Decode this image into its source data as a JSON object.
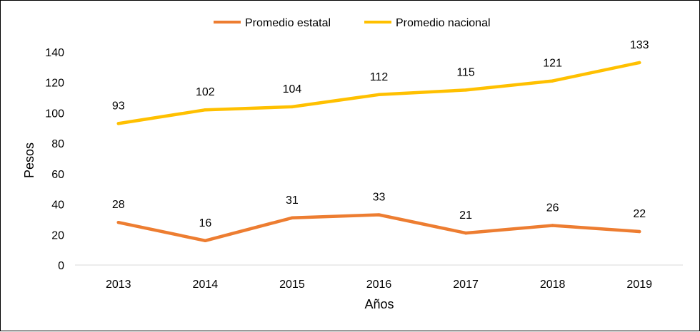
{
  "chart_data": {
    "type": "line",
    "title": "",
    "xlabel": "Años",
    "ylabel": "Pesos",
    "categories": [
      "2013",
      "2014",
      "2015",
      "2016",
      "2017",
      "2018",
      "2019"
    ],
    "ylim": [
      0,
      140
    ],
    "yticks": [
      0,
      20,
      40,
      60,
      80,
      100,
      120,
      140
    ],
    "grid": false,
    "legend_position": "top",
    "series": [
      {
        "name": "Promedio estatal",
        "color": "#ED7D31",
        "values": [
          28,
          16,
          31,
          33,
          21,
          26,
          22
        ]
      },
      {
        "name": "Promedio nacional",
        "color": "#FFC000",
        "values": [
          93,
          102,
          104,
          112,
          115,
          121,
          133
        ]
      }
    ]
  }
}
